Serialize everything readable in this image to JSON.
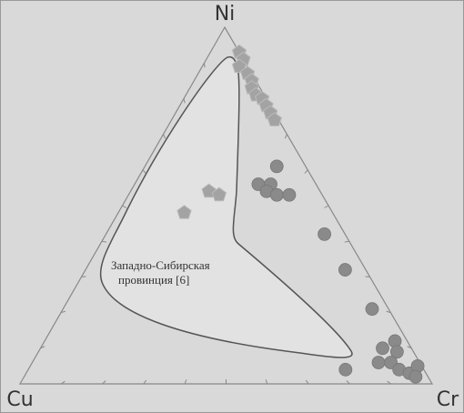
{
  "chart_data": {
    "type": "ternary",
    "axes": [
      "Ni",
      "Cu",
      "Cr"
    ],
    "ticks": [
      10,
      20,
      30,
      40,
      50,
      60,
      70,
      80,
      90
    ],
    "field_label": [
      "Западно-Сибирская",
      "провинция [6]"
    ],
    "series": [
      {
        "marker": "pentagon",
        "color": "#a3a3a3",
        "values": [
          [
            93,
            0,
            7
          ],
          [
            91,
            0,
            9
          ],
          [
            89,
            2,
            9
          ],
          [
            87,
            1,
            12
          ],
          [
            85,
            1,
            14
          ],
          [
            83,
            2,
            15
          ],
          [
            81,
            2,
            17
          ],
          [
            80,
            1,
            19
          ],
          [
            78,
            1,
            21
          ],
          [
            76,
            1,
            23
          ],
          [
            74,
            1,
            25
          ],
          [
            54,
            27,
            19
          ],
          [
            53,
            25,
            22
          ],
          [
            48,
            36,
            16
          ]
        ]
      },
      {
        "marker": "circle",
        "color": "#8a8a8a",
        "values": [
          [
            61,
            7,
            32
          ],
          [
            56,
            14,
            30
          ],
          [
            56,
            11,
            33
          ],
          [
            54,
            13,
            33
          ],
          [
            53,
            11,
            36
          ],
          [
            53,
            8,
            39
          ],
          [
            42,
            5,
            53
          ],
          [
            32,
            5,
            63
          ],
          [
            21,
            4,
            75
          ],
          [
            12,
            3,
            85
          ],
          [
            10,
            7,
            83
          ],
          [
            9,
            4,
            87
          ],
          [
            6,
            10,
            84
          ],
          [
            6,
            7,
            87
          ],
          [
            4,
            6,
            90
          ],
          [
            3,
            4,
            93
          ],
          [
            5,
            1,
            94
          ],
          [
            2,
            3,
            95
          ],
          [
            4,
            19,
            77
          ]
        ]
      }
    ]
  }
}
